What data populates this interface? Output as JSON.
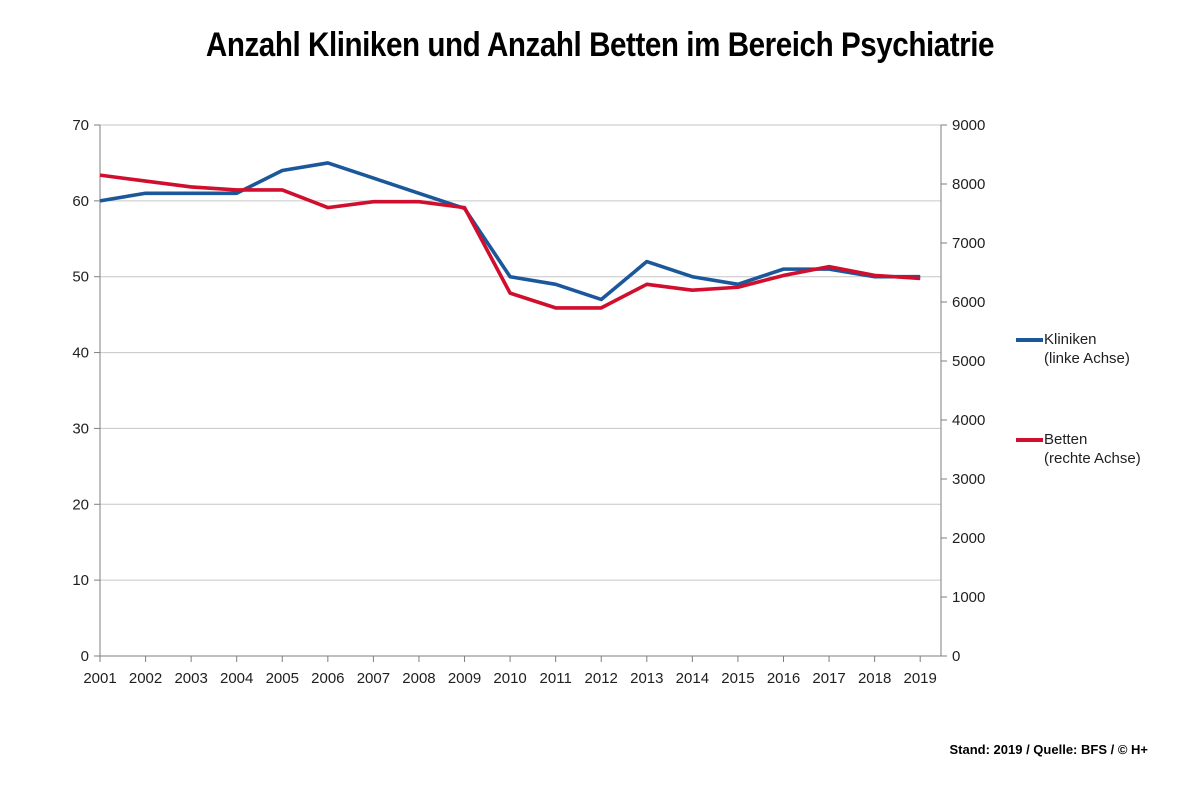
{
  "title": "Anzahl Kliniken und Anzahl Betten im Bereich Psychiatrie",
  "footer": "Stand: 2019 / Quelle: BFS / © H+",
  "colors": {
    "kliniken": "#1b579b",
    "betten": "#d00f2e",
    "grid": "#c6c6c6",
    "axis": "#7f7f7f",
    "label": "#1f1f1f"
  },
  "legend": {
    "kliniken": {
      "label": "Kliniken",
      "sublabel": "(linke Achse)"
    },
    "betten": {
      "label": "Betten",
      "sublabel": "(rechte Achse)"
    }
  },
  "chart_data": {
    "type": "line",
    "title": "Anzahl Kliniken und Anzahl Betten im Bereich Psychiatrie",
    "x": [
      2001,
      2002,
      2003,
      2004,
      2005,
      2006,
      2007,
      2008,
      2009,
      2010,
      2011,
      2012,
      2013,
      2014,
      2015,
      2016,
      2017,
      2018,
      2019
    ],
    "series": [
      {
        "name": "Kliniken (linke Achse)",
        "axis": "left",
        "color_key": "kliniken",
        "values": [
          60,
          61,
          61,
          61,
          64,
          65,
          63,
          61,
          59,
          50,
          49,
          47,
          52,
          50,
          49,
          51,
          51,
          50,
          50
        ]
      },
      {
        "name": "Betten (rechte Achse)",
        "axis": "right",
        "color_key": "betten",
        "values": [
          8150,
          8050,
          7950,
          7900,
          7900,
          7600,
          7700,
          7700,
          7600,
          6150,
          5900,
          5900,
          6300,
          6200,
          6250,
          6450,
          6600,
          6450,
          6400
        ]
      }
    ],
    "left_axis": {
      "min": 0,
      "max": 70,
      "ticks": [
        0,
        10,
        20,
        30,
        40,
        50,
        60,
        70
      ]
    },
    "right_axis": {
      "min": 0,
      "max": 9000,
      "ticks": [
        0,
        1000,
        2000,
        3000,
        4000,
        5000,
        6000,
        7000,
        8000,
        9000
      ]
    },
    "grid": "horizontal",
    "legend_position": "right"
  }
}
